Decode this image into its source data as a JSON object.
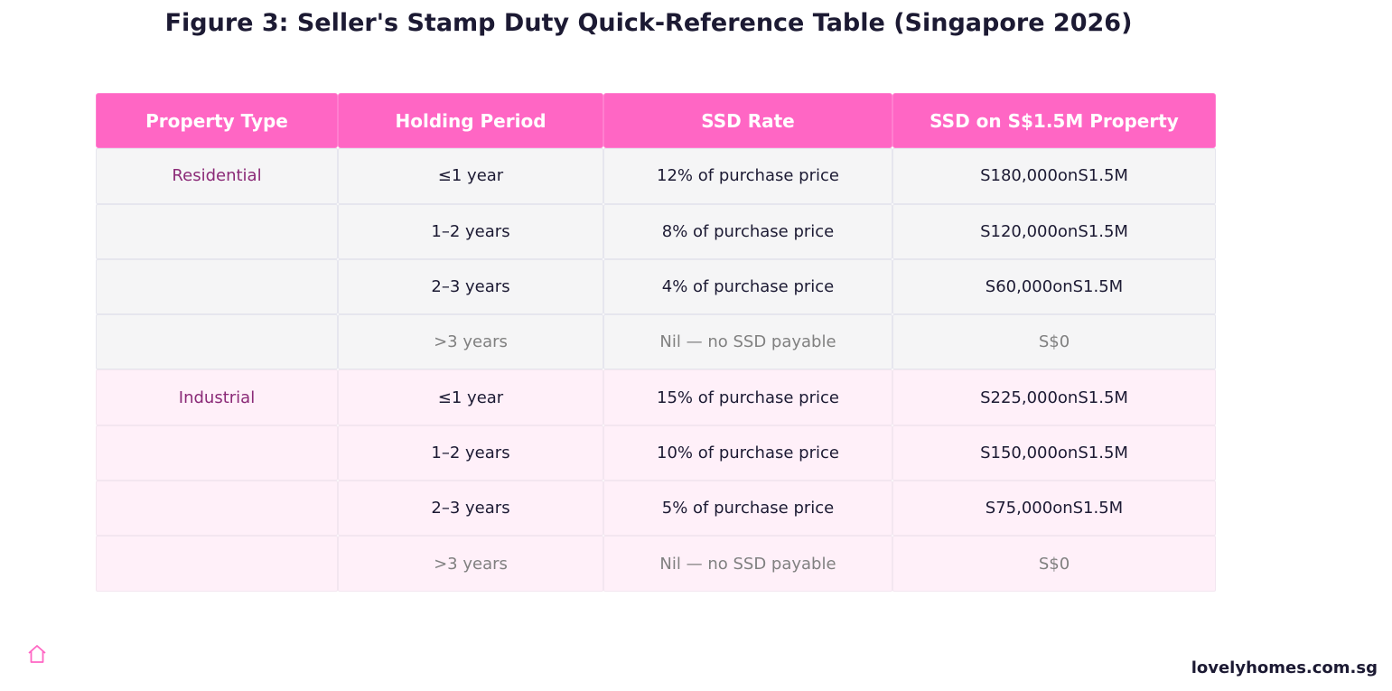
{
  "title": "Figure 3: Seller's Stamp Duty Quick-Reference Table (Singapore 2026)",
  "table": {
    "headers": [
      "Property Type",
      "Holding Period",
      "SSD Rate",
      "SSD on S$1.5M Property"
    ],
    "rows": [
      {
        "type": "Residential",
        "period": "≤1 year",
        "rate": "12% of purchase price",
        "amount": "S180,000onS1.5M"
      },
      {
        "type": "",
        "period": "1–2 years",
        "rate": "8% of purchase price",
        "amount": "S120,000onS1.5M"
      },
      {
        "type": "",
        "period": "2–3 years",
        "rate": "4% of purchase price",
        "amount": "S60,000onS1.5M"
      },
      {
        "type": "",
        "period": ">3 years",
        "rate": "Nil — no SSD payable",
        "amount": "S$0"
      },
      {
        "type": "Industrial",
        "period": "≤1 year",
        "rate": "15% of purchase price",
        "amount": "S225,000onS1.5M"
      },
      {
        "type": "",
        "period": "1–2 years",
        "rate": "10% of purchase price",
        "amount": "S150,000onS1.5M"
      },
      {
        "type": "",
        "period": "2–3 years",
        "rate": "5% of purchase price",
        "amount": "S75,000onS1.5M"
      },
      {
        "type": "",
        "period": ">3 years",
        "rate": "Nil — no SSD payable",
        "amount": "S$0"
      }
    ]
  },
  "footer": {
    "logo_icon": "house-icon",
    "brand": "lovelyhomes.com.sg"
  },
  "colors": {
    "header_bg": "#ff66c4",
    "residential_bg": "#f5f5f6",
    "industrial_bg": "#fff0f9",
    "type_text": "#8b2a77",
    "muted_text": "#808080"
  }
}
